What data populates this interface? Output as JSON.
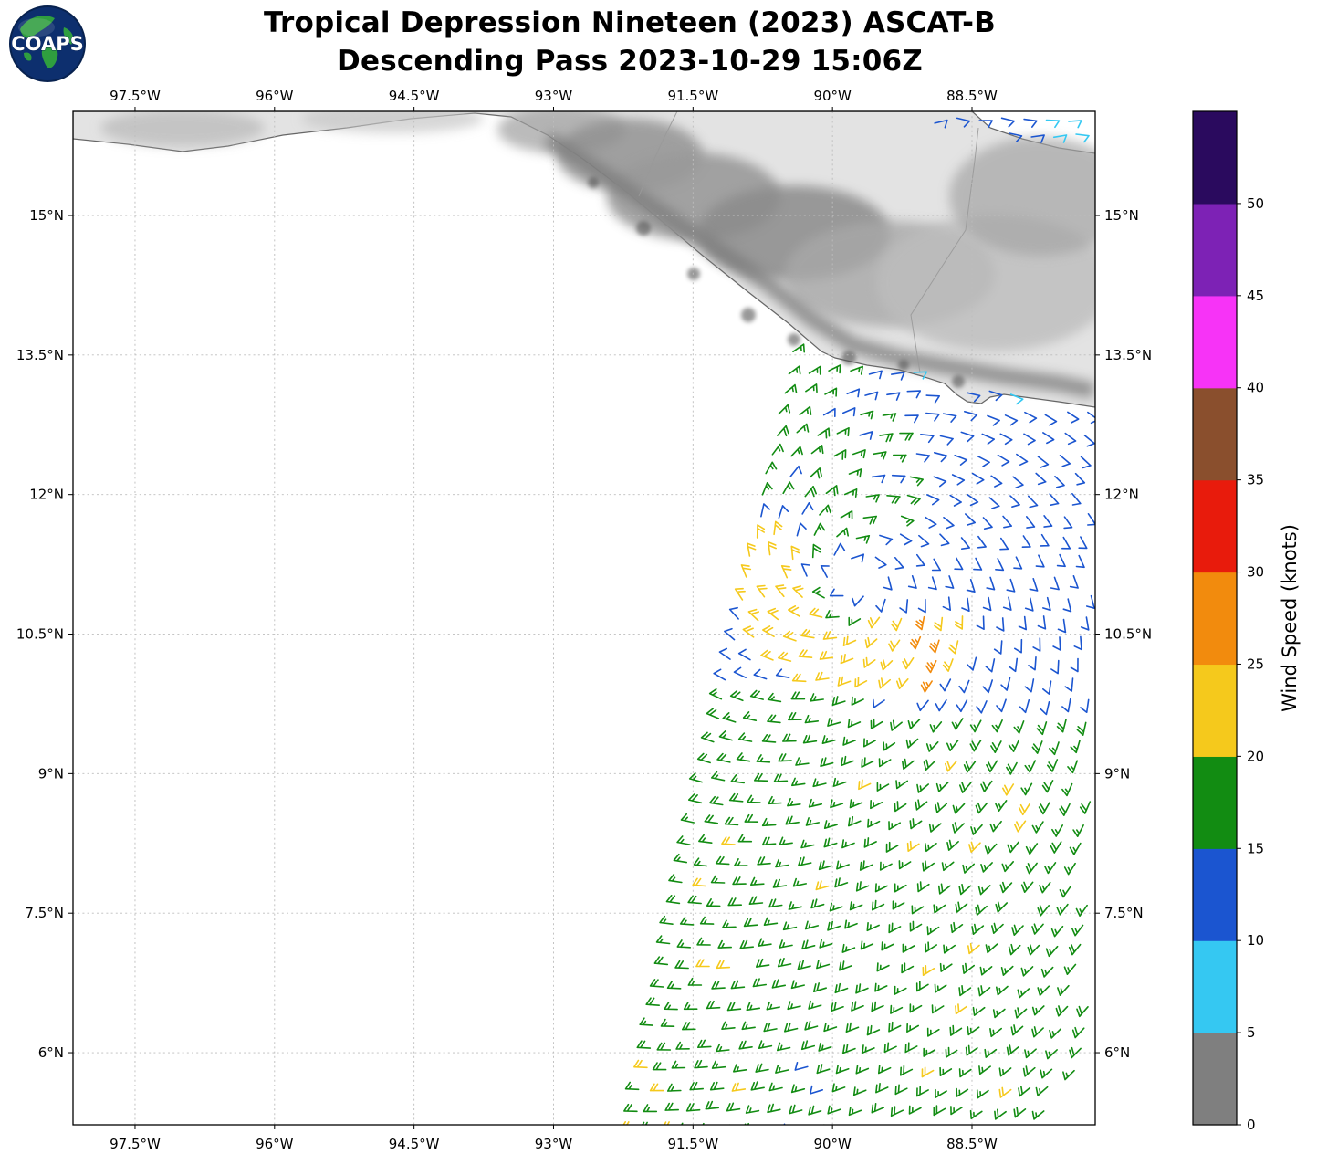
{
  "title": {
    "line1": "Tropical Depression Nineteen (2023) ASCAT-B",
    "line2": "Descending Pass 2023-10-29 15:06Z"
  },
  "logo": {
    "text": "COAPS"
  },
  "chart_data": {
    "type": "map-windbarbs",
    "title": "Tropical Depression Nineteen (2023) ASCAT-B",
    "subtitle": "Descending Pass 2023-10-29 15:06Z",
    "grid": true,
    "lon_range": [
      -98.167,
      -87.175
    ],
    "lat_range": [
      5.225,
      16.119
    ],
    "x_axis": {
      "ticks": [
        {
          "value": -97.5,
          "label": "97.5°W"
        },
        {
          "value": -96.0,
          "label": "96°W"
        },
        {
          "value": -94.5,
          "label": "94.5°W"
        },
        {
          "value": -93.0,
          "label": "93°W"
        },
        {
          "value": -91.5,
          "label": "91.5°W"
        },
        {
          "value": -90.0,
          "label": "90°W"
        },
        {
          "value": -88.5,
          "label": "88.5°W"
        }
      ]
    },
    "y_axis": {
      "ticks": [
        {
          "value": 15.0,
          "label": "15°N"
        },
        {
          "value": 13.5,
          "label": "13.5°N"
        },
        {
          "value": 12.0,
          "label": "12°N"
        },
        {
          "value": 10.5,
          "label": "10.5°N"
        },
        {
          "value": 9.0,
          "label": "9°N"
        },
        {
          "value": 7.5,
          "label": "7.5°N"
        },
        {
          "value": 6.0,
          "label": "6°N"
        }
      ]
    },
    "colorbar": {
      "label": "Wind Speed (knots)",
      "tick_values": [
        0,
        5,
        10,
        15,
        20,
        25,
        30,
        35,
        40,
        45,
        50
      ],
      "max": 55,
      "segments": [
        {
          "from": 0,
          "to": 5,
          "color": "#7f7f7f"
        },
        {
          "from": 5,
          "to": 10,
          "color": "#35c8f2"
        },
        {
          "from": 10,
          "to": 15,
          "color": "#1b55d0"
        },
        {
          "from": 15,
          "to": 20,
          "color": "#128c12"
        },
        {
          "from": 20,
          "to": 25,
          "color": "#f5c91c"
        },
        {
          "from": 25,
          "to": 30,
          "color": "#f28b0d"
        },
        {
          "from": 30,
          "to": 35,
          "color": "#e81b0c"
        },
        {
          "from": 35,
          "to": 40,
          "color": "#8a4f2d"
        },
        {
          "from": 40,
          "to": 45,
          "color": "#f733f7"
        },
        {
          "from": 45,
          "to": 50,
          "color": "#7d22b5"
        },
        {
          "from": 50,
          "to": 55,
          "color": "#2a0a5e"
        }
      ]
    },
    "storm_center": {
      "lon": -89.8,
      "lat": 11.15
    },
    "swath": {
      "lat_min": 4.95,
      "lat_max": 13.75,
      "grid_step_deg": 0.22,
      "left_edge": {
        "lat": 5.2,
        "lon": -92.15,
        "slope_deg_per_deg": 0.208
      },
      "right_edge_lon": -87.22,
      "coastline_cut": {
        "start_lon": -90.3,
        "start_lat": 13.55,
        "slope": -0.2,
        "west_lat": 13.62
      }
    },
    "wind_field": {
      "barb_speeds_knots": [
        5,
        10,
        15,
        20,
        25,
        30
      ],
      "background_speed_knots": 17,
      "east_sector_speed_knots": 12,
      "ring_speed_knots": 22,
      "ring_max_speed_knots": 27,
      "eye_speed_knots": 11,
      "coastal_speed_knots": 8,
      "inflow_deg": 20
    },
    "caribbean_rows": [
      {
        "lat": 16.02,
        "lon_from": -88.9,
        "lon_to": -87.3
      },
      {
        "lat": 15.86,
        "lon_from": -88.1,
        "lon_to": -87.3
      }
    ]
  }
}
